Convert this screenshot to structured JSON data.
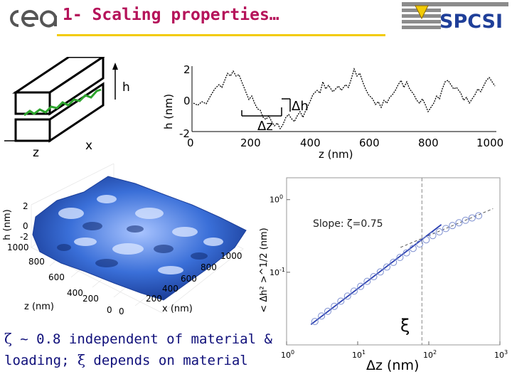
{
  "slide": {
    "title": "1- Scaling properties…",
    "logo_left": "cea",
    "logo_right": "SPCSI",
    "colors": {
      "title": "#b5135a",
      "accent_rule": "#f2cb05",
      "logo_blue": "#1f3f99",
      "fracture": "#2ea42e",
      "surface": "#3a6fd8",
      "fit_line": "#2a3fb0",
      "caption": "#0f0f7a"
    }
  },
  "schematic": {
    "label_h": "h",
    "label_z": "z",
    "label_x": "x"
  },
  "profile_plot": {
    "ylabel": "h (nm)",
    "xlabel": "z (nm)",
    "yticks": [
      "2",
      "0",
      "-2"
    ],
    "xticks": [
      "0",
      "200",
      "400",
      "600",
      "800",
      "1000"
    ],
    "annot_dh": "Δh",
    "annot_dz": "Δz"
  },
  "surface_plot": {
    "zlabel": "h (nm)",
    "zticks": [
      "2",
      "0",
      "-2"
    ],
    "ylabel": "z (nm)",
    "yticks": [
      "1000",
      "800",
      "600",
      "400",
      "200",
      "0"
    ],
    "xlabel": "x (nm)",
    "xticks": [
      "0",
      "200",
      "400",
      "600",
      "800",
      "1000"
    ]
  },
  "chart_data": {
    "type": "scatter",
    "xlabel": "Δz (nm)",
    "ylabel": "< Δh² >^1/2 (nm)",
    "xscale": "log",
    "yscale": "log",
    "xlim": [
      1,
      1000
    ],
    "ylim": [
      0.01,
      2
    ],
    "xticks": [
      {
        "base": "10",
        "exp": "0"
      },
      {
        "base": "10",
        "exp": "1"
      },
      {
        "base": "10",
        "exp": "2"
      },
      {
        "base": "10",
        "exp": "3"
      }
    ],
    "yticks": [
      {
        "base": "10",
        "exp": "0"
      },
      {
        "base": "10",
        "exp": "-1"
      }
    ],
    "annotation": "Slope: ζ=0.75",
    "xi_label": "ξ",
    "xi_position": 80,
    "series": [
      {
        "values_x": [
          2.5,
          3.1,
          3.8,
          4.7,
          5.8,
          7.2,
          8.9,
          11,
          13.6,
          16.8,
          20.8,
          25.7,
          31.8,
          39.3,
          48.6,
          60.1,
          74.3,
          91.9,
          113.6,
          140.5,
          173.7,
          214.8,
          265.6,
          328.4,
          406.1,
          502.2
        ],
        "values_y": [
          0.021,
          0.025,
          0.029,
          0.034,
          0.04,
          0.047,
          0.055,
          0.064,
          0.075,
          0.087,
          0.101,
          0.118,
          0.137,
          0.16,
          0.185,
          0.213,
          0.245,
          0.28,
          0.32,
          0.36,
          0.4,
          0.44,
          0.48,
          0.52,
          0.56,
          0.6
        ]
      }
    ]
  },
  "caption": {
    "zeta": "ζ",
    "line1": " ~ 0.8 independent of material &",
    "line2a": "loading;  ",
    "xi": "ξ",
    "line2b": " depends on material"
  }
}
